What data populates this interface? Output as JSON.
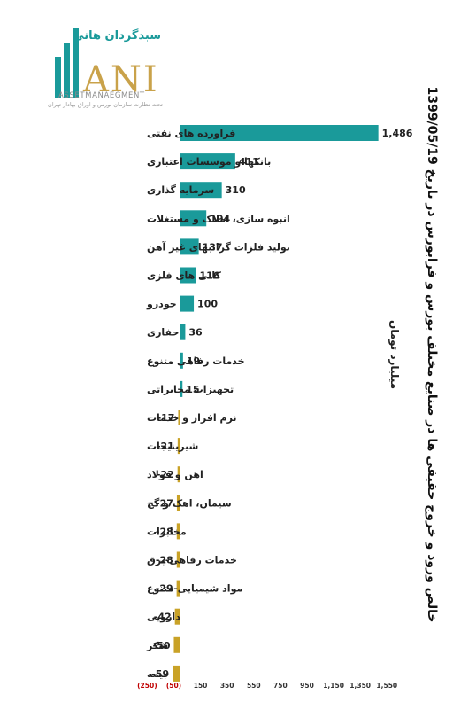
{
  "brand": {
    "persian_name": "سبدگردان هانی",
    "logo_text": "ANI",
    "sub_text": "ASSETMANAEGMENT",
    "tagline": "تحت نظارت سازمان بورس و اوراق بهادار تهران",
    "colors": {
      "teal": "#1a9a9a",
      "gold": "#c9a24a"
    }
  },
  "title": "خالص ورود و خروج حقیقی ها در صنایع مختلف بورس و فرابورس در تاریخ 1399/05/19",
  "unit_label": "میلیارد تومان",
  "chart_data": {
    "type": "bar",
    "orientation": "horizontal",
    "categories": [
      "فراورده های نفتی",
      "بانکها و موسسات اعتباری",
      "سرمایه گذاری",
      "انبوه سازی، املاک و مستغلات",
      "تولید فلزات گرانبهای غیر آهن",
      "کانی های فلزی",
      "خودرو",
      "حفاری",
      "خدمات رفاهی متنوع",
      "تجهیزات مخابراتی",
      "نرم افزار و خدمات",
      "شیرینیجات",
      "اهن و فولاد",
      "سیمان، اهک و گچ",
      "مخابرات",
      "خدمات رفاهی-برق",
      "مواد شیمیایی-متنوع",
      "دارویی",
      "شکر",
      "بیمه"
    ],
    "values": [
      1486,
      411,
      310,
      194,
      137,
      116,
      100,
      36,
      19,
      15,
      -17,
      -21,
      -22,
      -27,
      -28,
      -28,
      -29,
      -42,
      -50,
      -59
    ],
    "value_labels": [
      "1,486",
      "411",
      "310",
      "194",
      "137",
      "116",
      "100",
      "36",
      "19",
      "15",
      "-17",
      "-21",
      "-22",
      "-27",
      "-28",
      "-28",
      "-29",
      "-42",
      "-50",
      "-59"
    ],
    "xlim": [
      -250,
      1550
    ],
    "ticks": [
      -250,
      -50,
      150,
      350,
      550,
      750,
      950,
      1150,
      1350,
      1550
    ],
    "tick_labels": [
      "(250)",
      "(50)",
      "150",
      "350",
      "550",
      "750",
      "950",
      "1,150",
      "1,350",
      "1,550"
    ],
    "colors": {
      "positive": "#1a9a9a",
      "negative": "#c9a227",
      "negative_tick": "#c00000"
    },
    "grid": false,
    "legend": "none"
  }
}
